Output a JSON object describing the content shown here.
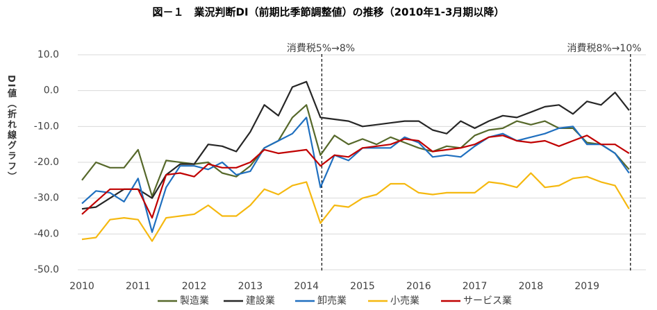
{
  "chart_data": {
    "type": "line",
    "title": "図－１　業況判断DI（前期比季節調整値）の推移（2010年1-3月期以降）",
    "y_label": "DI値（折れ線グラフ）",
    "annotations": [
      "消費税5%→8%",
      "消費税8%→10%"
    ],
    "categories": [
      "2010",
      null,
      null,
      null,
      "2011",
      null,
      null,
      null,
      "2012",
      null,
      null,
      null,
      "2013",
      null,
      null,
      null,
      "2014",
      null,
      null,
      null,
      "2015",
      null,
      null,
      null,
      "2016",
      null,
      null,
      null,
      "2017",
      null,
      null,
      null,
      "2018",
      null,
      null,
      null,
      "2019",
      null,
      null,
      null
    ],
    "ylim": [
      -50,
      10
    ],
    "yticks": [
      {
        "value": 10,
        "label": "10.0"
      },
      {
        "value": 0,
        "label": "0.0"
      },
      {
        "value": -10,
        "label": "-10.0"
      },
      {
        "value": -20,
        "label": "-20.0"
      },
      {
        "value": -30,
        "label": "-30.0"
      },
      {
        "value": -40,
        "label": "-40.0"
      },
      {
        "value": -50,
        "label": "-50.0"
      }
    ],
    "grid": true,
    "legend": "bottom",
    "series": [
      {
        "name": "製造業",
        "color": "#56682a",
        "values": [
          -25,
          -20,
          -21.5,
          -21.5,
          -16.5,
          -29.5,
          -19.5,
          -20,
          -20.5,
          -20,
          -23,
          -24,
          -21,
          -16,
          -14,
          -7.5,
          -4,
          -18,
          -12.5,
          -15,
          -13.5,
          -15,
          -13,
          -14.5,
          -16,
          -17,
          -15.5,
          -16,
          -12.5,
          -11,
          -10.5,
          -8.5,
          -9.5,
          -8.5,
          -10.5,
          -10.5,
          -14.5,
          -15,
          -17.5,
          -22
        ]
      },
      {
        "name": "建設業",
        "color": "#262626",
        "values": [
          -33,
          -32.5,
          -30,
          -27.5,
          -27.5,
          -30,
          -23.5,
          -20.5,
          -20.5,
          -15,
          -15.5,
          -17,
          -11.5,
          -4,
          -7,
          1,
          2.5,
          -7.5,
          -8,
          -8.5,
          -10,
          -9.5,
          -9,
          -8.5,
          -8.5,
          -11,
          -12,
          -8.5,
          -10.5,
          -8.5,
          -7,
          -7.5,
          -6,
          -4.5,
          -4,
          -6.5,
          -3,
          -4,
          -0.5,
          -5.5
        ]
      },
      {
        "name": "卸売業",
        "color": "#1f6fbf",
        "values": [
          -31.5,
          -28,
          -28.5,
          -31,
          -24.5,
          -39.5,
          -27,
          -21,
          -21,
          -22,
          -20,
          -23.5,
          -22.5,
          -16,
          -14,
          -12,
          -7.5,
          -27,
          -18,
          -19.5,
          -16,
          -16,
          -16,
          -13,
          -14.5,
          -18.5,
          -18,
          -18.5,
          -15.5,
          -13,
          -12,
          -14,
          -13,
          -12,
          -10.5,
          -10,
          -15,
          -15,
          -17.5,
          -23
        ]
      },
      {
        "name": "小売業",
        "color": "#f5b80f",
        "values": [
          -41.5,
          -41,
          -36,
          -35.5,
          -36,
          -42,
          -35.5,
          -35,
          -34.5,
          -32,
          -35,
          -35,
          -32,
          -27.5,
          -29,
          -26.5,
          -25.5,
          -37,
          -32,
          -32.5,
          -30,
          -29,
          -26,
          -26,
          -28.5,
          -29,
          -28.5,
          -28.5,
          -28.5,
          -25.5,
          -26,
          -27,
          -23,
          -27,
          -26.5,
          -24.5,
          -24,
          -25.5,
          -26.5,
          -33
        ]
      },
      {
        "name": "サービス業",
        "color": "#c00000",
        "values": [
          -34.5,
          -31,
          -27.5,
          -27.5,
          -27.5,
          -35.5,
          -23.5,
          -23,
          -24,
          -20.5,
          -21.5,
          -21.5,
          -20,
          -16.5,
          -17.5,
          -17,
          -16.5,
          -21,
          -18,
          -18.5,
          -16,
          -15.5,
          -15,
          -13.5,
          -14,
          -17,
          -16.5,
          -16,
          -15,
          -13,
          -12.5,
          -14,
          -14.5,
          -14,
          -15.5,
          -14,
          -12.5,
          -15,
          -15,
          -17.5
        ]
      }
    ]
  }
}
